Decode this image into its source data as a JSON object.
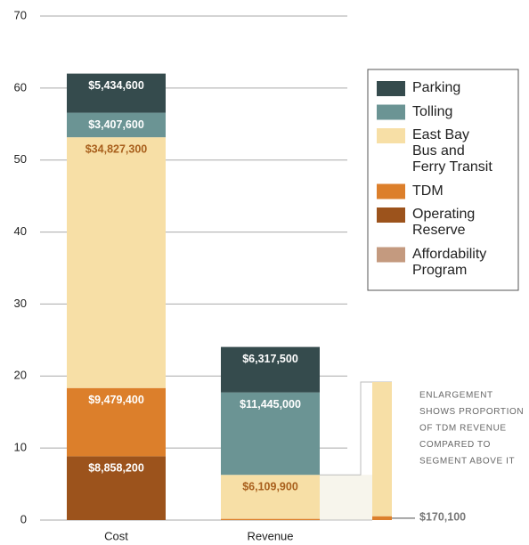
{
  "chart_data": {
    "type": "stacked-bar",
    "categories": [
      "Cost",
      "Revenue"
    ],
    "series": [
      {
        "name": "Parking",
        "color": "#354b4d",
        "values": [
          5.4346,
          6.3175
        ],
        "value_labels": [
          "$5,434,600",
          "$6,317,500"
        ]
      },
      {
        "name": "Tolling",
        "color": "#6b9494",
        "values": [
          3.4076,
          11.445
        ],
        "value_labels": [
          "$3,407,600",
          "$11,445,000"
        ]
      },
      {
        "name": "East Bay Bus and Ferry Transit",
        "color": "#f7dfa6",
        "values": [
          34.8273,
          6.1099
        ],
        "value_labels": [
          "$34,827,300",
          "$6,109,900"
        ]
      },
      {
        "name": "TDM",
        "color": "#dc7f2b",
        "values": [
          9.4794,
          0.1701
        ],
        "value_labels": [
          "$9,479,400",
          "$170,100"
        ]
      },
      {
        "name": "Operating Reserve",
        "color": "#9c531c",
        "values": [
          8.8582,
          null
        ],
        "value_labels": [
          "$8,858,200",
          null
        ]
      },
      {
        "name": "Affordability Program",
        "color": "#c49a7f",
        "values": [
          null,
          null
        ],
        "value_labels": [
          null,
          null
        ]
      }
    ],
    "ylim": [
      0,
      70
    ],
    "yticks": [
      0,
      10,
      20,
      30,
      40,
      50,
      60,
      70
    ],
    "grid": true,
    "legend": "right",
    "annotation": [
      "ENLARGEMENT",
      "SHOWS PROPORTION",
      "OF TDM REVENUE",
      "COMPARED TO",
      "SEGMENT ABOVE IT"
    ]
  }
}
